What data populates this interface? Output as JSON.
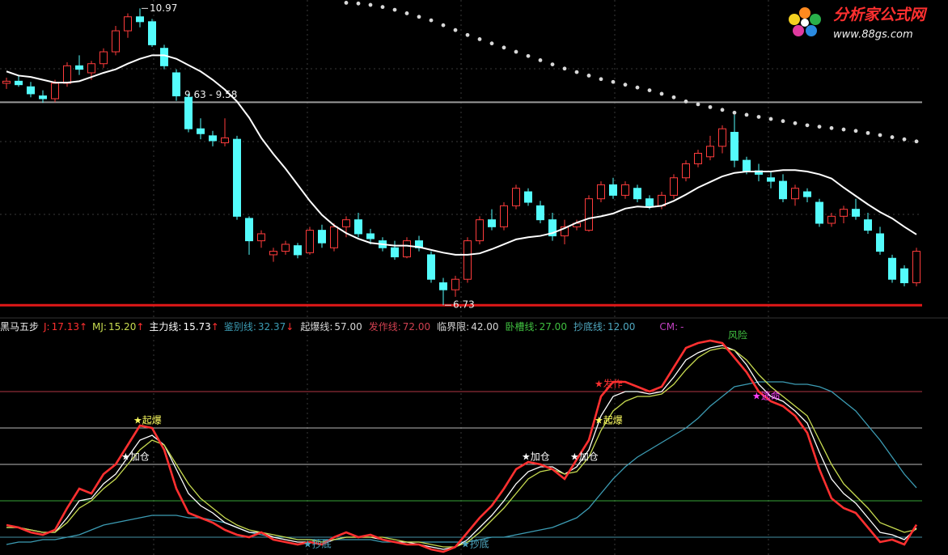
{
  "chart_data": [
    {
      "type": "candlestick",
      "ylim": [
        6.64,
        11.09
      ],
      "colors": {
        "up": "#ff3c3c",
        "down": "#54fcfc",
        "flat": "#ffffff"
      },
      "open": [
        9.9,
        9.93,
        9.85,
        9.72,
        9.68,
        9.9,
        10.15,
        10.05,
        10.18,
        10.35,
        10.65,
        10.85,
        10.78,
        10.4,
        10.05,
        9.7,
        9.25,
        9.15,
        9.05,
        9.1,
        7.97,
        7.65,
        7.45,
        7.5,
        7.58,
        7.48,
        7.8,
        7.55,
        7.85,
        7.95,
        7.75,
        7.65,
        7.55,
        7.42,
        7.65,
        7.45,
        7.05,
        6.95,
        7.1,
        7.65,
        7.95,
        7.85,
        8.15,
        8.35,
        8.15,
        7.95,
        7.72,
        7.85,
        7.8,
        8.25,
        8.45,
        8.3,
        8.4,
        8.25,
        8.15,
        8.3,
        8.55,
        8.75,
        8.85,
        9.0,
        9.2,
        8.8,
        8.65,
        8.55,
        8.5,
        8.25,
        8.35,
        8.2,
        7.9,
        8.0,
        8.1,
        7.95,
        7.75,
        7.4,
        7.25,
        7.05
      ],
      "high": [
        9.98,
        10.02,
        9.92,
        9.8,
        9.95,
        10.2,
        10.3,
        10.22,
        10.4,
        10.72,
        10.9,
        10.97,
        10.82,
        10.45,
        10.1,
        9.75,
        9.4,
        9.22,
        9.4,
        9.15,
        8.0,
        7.8,
        7.55,
        7.65,
        7.62,
        7.85,
        7.88,
        7.9,
        8.0,
        8.05,
        7.82,
        7.7,
        7.65,
        7.7,
        7.72,
        7.5,
        7.12,
        7.15,
        7.7,
        8.0,
        8.1,
        8.2,
        8.45,
        8.4,
        8.22,
        8.05,
        7.95,
        7.95,
        8.3,
        8.5,
        8.55,
        8.5,
        8.45,
        8.3,
        8.35,
        8.6,
        8.8,
        8.95,
        9.15,
        9.3,
        9.45,
        8.85,
        8.75,
        8.65,
        8.6,
        8.45,
        8.4,
        8.25,
        8.05,
        8.15,
        8.25,
        8.05,
        7.85,
        7.45,
        7.3,
        7.55
      ],
      "low": [
        9.82,
        9.85,
        9.7,
        9.62,
        9.63,
        9.85,
        10.02,
        9.95,
        10.12,
        10.3,
        10.55,
        10.7,
        10.42,
        10.1,
        9.65,
        9.2,
        9.1,
        9.0,
        9.0,
        7.95,
        7.45,
        7.55,
        7.35,
        7.45,
        7.4,
        7.45,
        7.55,
        7.5,
        7.7,
        7.7,
        7.6,
        7.5,
        7.38,
        7.4,
        7.5,
        7.05,
        6.73,
        6.85,
        7.05,
        7.6,
        7.8,
        7.8,
        8.1,
        8.15,
        7.9,
        7.65,
        7.6,
        7.8,
        7.78,
        8.2,
        8.25,
        8.25,
        8.2,
        8.1,
        8.1,
        8.25,
        8.5,
        8.7,
        8.8,
        8.9,
        8.7,
        8.6,
        8.5,
        8.4,
        8.2,
        8.15,
        8.2,
        7.85,
        7.85,
        7.9,
        7.95,
        7.75,
        7.45,
        7.05,
        7.0,
        7.0
      ],
      "close": [
        9.93,
        9.88,
        9.75,
        9.68,
        9.9,
        10.15,
        10.1,
        10.18,
        10.35,
        10.65,
        10.85,
        10.78,
        10.45,
        10.15,
        9.72,
        9.25,
        9.18,
        9.08,
        9.12,
        8.0,
        7.65,
        7.75,
        7.5,
        7.6,
        7.45,
        7.8,
        7.62,
        7.85,
        7.95,
        7.75,
        7.68,
        7.55,
        7.42,
        7.65,
        7.55,
        7.1,
        6.95,
        7.1,
        7.65,
        7.95,
        7.85,
        8.15,
        8.4,
        8.2,
        7.95,
        7.72,
        7.85,
        7.9,
        8.25,
        8.45,
        8.3,
        8.45,
        8.25,
        8.15,
        8.3,
        8.55,
        8.75,
        8.9,
        9.0,
        9.25,
        8.8,
        8.65,
        8.6,
        8.5,
        8.25,
        8.4,
        8.28,
        7.9,
        8.0,
        8.1,
        8.0,
        7.8,
        7.5,
        7.1,
        7.05,
        7.5
      ],
      "ma": {
        "color": "#ffffff",
        "values": [
          10.07,
          10.01,
          9.99,
          9.95,
          9.91,
          9.91,
          9.93,
          9.99,
          10.05,
          10.1,
          10.18,
          10.25,
          10.3,
          10.3,
          10.25,
          10.16,
          10.07,
          9.95,
          9.81,
          9.64,
          9.41,
          9.12,
          8.89,
          8.68,
          8.45,
          8.22,
          8.02,
          7.87,
          7.76,
          7.68,
          7.62,
          7.6,
          7.58,
          7.58,
          7.56,
          7.52,
          7.48,
          7.45,
          7.45,
          7.47,
          7.53,
          7.6,
          7.67,
          7.7,
          7.72,
          7.76,
          7.83,
          7.91,
          7.97,
          8.0,
          8.04,
          8.11,
          8.14,
          8.13,
          8.15,
          8.22,
          8.31,
          8.41,
          8.49,
          8.57,
          8.62,
          8.64,
          8.64,
          8.64,
          8.66,
          8.66,
          8.64,
          8.6,
          8.54,
          8.41,
          8.29,
          8.17,
          8.06,
          7.97,
          7.85,
          7.74
        ]
      },
      "sar": {
        "color": "#d8d8d8",
        "values": [
          null,
          null,
          null,
          null,
          null,
          null,
          null,
          null,
          null,
          null,
          null,
          null,
          null,
          null,
          null,
          null,
          null,
          null,
          null,
          null,
          null,
          null,
          null,
          null,
          null,
          null,
          null,
          null,
          11.05,
          11.04,
          11.02,
          10.99,
          10.95,
          10.9,
          10.85,
          10.8,
          10.73,
          10.66,
          10.59,
          10.53,
          10.47,
          10.41,
          10.35,
          10.29,
          10.23,
          10.17,
          10.11,
          10.06,
          10.01,
          9.96,
          9.92,
          9.88,
          9.84,
          9.8,
          9.75,
          9.7,
          9.64,
          9.6,
          9.56,
          9.52,
          9.48,
          9.45,
          9.42,
          9.39,
          9.36,
          9.33,
          9.3,
          9.28,
          9.26,
          9.24,
          9.22,
          9.19,
          9.16,
          9.13,
          9.1,
          9.07
        ]
      },
      "levels": [
        {
          "value": 9.63,
          "label": "9.63 - 9.58",
          "color": "#9a9a9a"
        },
        {
          "value": 6.73,
          "color": "#e01818"
        }
      ],
      "extremes": [
        {
          "index": 11,
          "value": 10.97
        },
        {
          "index": 36,
          "value": 6.73
        }
      ]
    },
    {
      "type": "line",
      "title": "黑马五步",
      "ylim": [
        5,
        100
      ],
      "series": [
        {
          "name": "J:",
          "color": "#ff3030",
          "trend": "↑",
          "values": [
            17,
            16,
            14,
            13,
            15,
            24,
            32,
            30,
            38,
            42,
            50,
            58,
            57,
            48,
            32,
            22,
            20,
            18,
            15,
            13,
            12,
            14,
            11,
            10,
            9,
            10,
            9,
            12,
            14,
            12,
            13,
            11,
            10,
            9,
            9,
            7,
            6,
            8,
            14,
            20,
            25,
            32,
            40,
            43,
            42,
            40,
            36,
            44,
            52,
            70,
            76,
            76,
            74,
            72,
            74,
            82,
            90,
            92,
            93,
            92,
            86,
            80,
            72,
            68,
            66,
            62,
            55,
            40,
            28,
            24,
            22,
            16,
            10,
            11,
            9,
            17.13
          ]
        },
        {
          "name": "MJ:",
          "color": "#c8dc50",
          "trend": "↑",
          "value_label": "15.20",
          "values": [
            16,
            16,
            15,
            14,
            14,
            18,
            24,
            27,
            32,
            36,
            42,
            48,
            52,
            50,
            42,
            34,
            28,
            24,
            20,
            17,
            15,
            14,
            13,
            12,
            11,
            11,
            10,
            11,
            12,
            12,
            12,
            12,
            11,
            10,
            10,
            9,
            8,
            8,
            10,
            14,
            19,
            24,
            30,
            36,
            39,
            40,
            38,
            39,
            45,
            56,
            64,
            68,
            70,
            70,
            71,
            75,
            81,
            86,
            89,
            90,
            89,
            85,
            79,
            74,
            70,
            66,
            62,
            52,
            42,
            34,
            29,
            24,
            18,
            16,
            14,
            15.2
          ]
        },
        {
          "name": "主力线:",
          "color": "#ffffff",
          "trend": "↑",
          "values": [
            16,
            16,
            15,
            14,
            14,
            20,
            27,
            28,
            34,
            38,
            45,
            52,
            54,
            50,
            40,
            30,
            25,
            22,
            18,
            16,
            14,
            14,
            12,
            11,
            10,
            10,
            9,
            11,
            12,
            12,
            12,
            11,
            10,
            10,
            9,
            8,
            7,
            8,
            11,
            16,
            21,
            27,
            34,
            39,
            41,
            41,
            38,
            41,
            48,
            62,
            70,
            72,
            72,
            71,
            72,
            78,
            85,
            88,
            90,
            91,
            89,
            83,
            75,
            70,
            68,
            64,
            59,
            47,
            36,
            30,
            26,
            20,
            14,
            13,
            11,
            15.73
          ]
        },
        {
          "name": "鉴别线:",
          "color": "#3c9cb4",
          "trend": "↓",
          "values": [
            9,
            10,
            10,
            11,
            11,
            12,
            13,
            15,
            17,
            18,
            19,
            20,
            21,
            21,
            21,
            20,
            20,
            19,
            18,
            16,
            14,
            13,
            12,
            12,
            11,
            11,
            11,
            11,
            11,
            11,
            11,
            10,
            10,
            10,
            10,
            10,
            10,
            10,
            10,
            11,
            12,
            12,
            13,
            14,
            15,
            16,
            18,
            20,
            24,
            30,
            36,
            41,
            45,
            48,
            51,
            54,
            57,
            61,
            66,
            70,
            74,
            75,
            76,
            76,
            76,
            75,
            75,
            74,
            72,
            68,
            64,
            58,
            52,
            45,
            38,
            32.37
          ]
        }
      ],
      "thresholds": [
        {
          "name": "起爆线:",
          "value": 57,
          "value_label": "57.00",
          "color": "#d8d8d8"
        },
        {
          "name": "发作线:",
          "value": 72,
          "value_label": "72.00",
          "color": "#d04050"
        },
        {
          "name": "临界限:",
          "value": 42,
          "value_label": "42.00",
          "color": "#d8d8d8"
        },
        {
          "name": "卧槽线:",
          "value": 27,
          "value_label": "27.00",
          "color": "#40c040"
        },
        {
          "name": "抄底线:",
          "value": 12,
          "value_label": "12.00",
          "color": "#50a8c0"
        }
      ],
      "extra": {
        "name": "CM:",
        "text": "-",
        "color": "#c040c0"
      },
      "annotations": [
        {
          "text": "★加仓",
          "index": 10,
          "value": 45,
          "color": "#ffffff"
        },
        {
          "text": "★起爆",
          "index": 11,
          "value": 60,
          "color": "#ffff60"
        },
        {
          "text": "★加仓",
          "index": 43,
          "value": 45,
          "color": "#ffffff"
        },
        {
          "text": "★加仓",
          "index": 47,
          "value": 45,
          "color": "#ffffff"
        },
        {
          "text": "★起爆",
          "index": 49,
          "value": 60,
          "color": "#ffff60"
        },
        {
          "text": "★发作",
          "index": 49,
          "value": 75,
          "color": "#ff3030"
        },
        {
          "text": "★逃命",
          "index": 62,
          "value": 70,
          "color": "#ff40ff"
        },
        {
          "text": "★抄底",
          "index": 25,
          "value": 9,
          "color": "#50a8c0"
        },
        {
          "text": "★抄底",
          "index": 38,
          "value": 9,
          "color": "#50a8c0"
        },
        {
          "text": "风险",
          "index": 60,
          "value": 95,
          "color": "#40c040"
        }
      ]
    }
  ],
  "watermark": {
    "title": "分析家公式网",
    "url": "www.88gs.com"
  }
}
